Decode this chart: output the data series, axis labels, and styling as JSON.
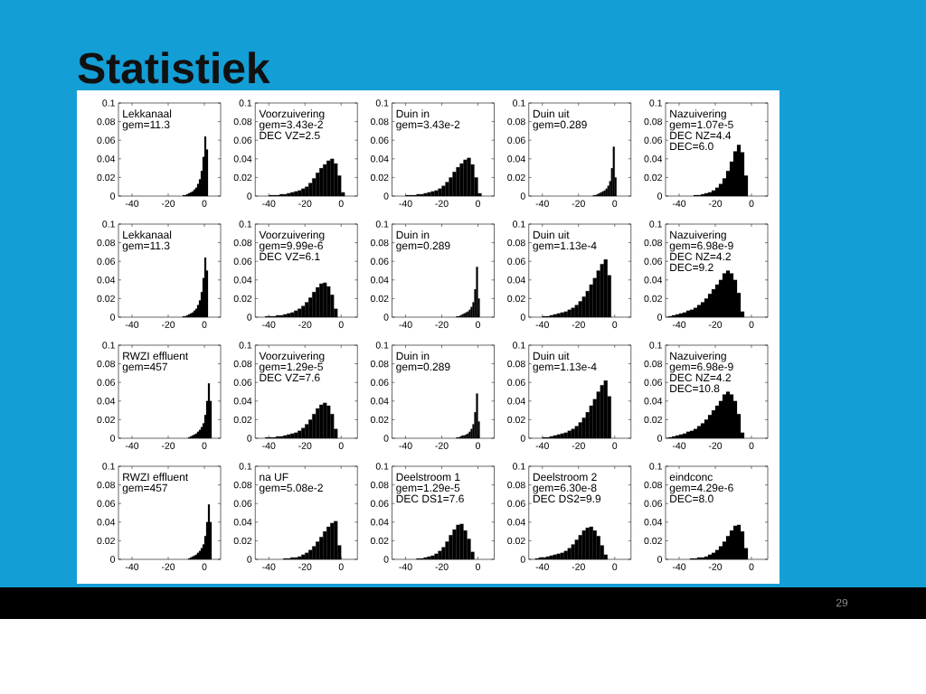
{
  "chart_data": [
    {
      "type": "other",
      "title": "Statistiek",
      "annotations": [
        "29"
      ]
    },
    {
      "type": "histogram",
      "title": "Lekkanaal",
      "annotations": [
        "gem=11.3"
      ],
      "bins": [
        -12,
        -11,
        -10,
        -9,
        -8,
        -7,
        -6,
        -5,
        -4,
        -3,
        -2,
        -1,
        0,
        1,
        2
      ],
      "values": [
        0.001,
        0.001,
        0.002,
        0.003,
        0.004,
        0.005,
        0.007,
        0.009,
        0.013,
        0.018,
        0.027,
        0.042,
        0.064,
        0.05
      ],
      "color": "#000000",
      "xlim": [
        -47.5,
        9
      ],
      "ylim": [
        0,
        0.1
      ],
      "xticks": [
        -40,
        -20,
        0
      ],
      "yticks": [
        0,
        0.02,
        0.04,
        0.06,
        0.08,
        0.1
      ]
    },
    {
      "type": "histogram",
      "title": "Voorzuivering",
      "annotations": [
        "gem=3.43e-2",
        "DEC VZ=2.5"
      ],
      "bins": [
        -40,
        -38,
        -36,
        -34,
        -32,
        -30,
        -28,
        -26,
        -24,
        -22,
        -20,
        -18,
        -16,
        -14,
        -12,
        -10,
        -8,
        -6,
        -4,
        -2,
        0,
        2
      ],
      "values": [
        0.001,
        0.001,
        0.001,
        0.002,
        0.002,
        0.003,
        0.004,
        0.005,
        0.006,
        0.008,
        0.01,
        0.014,
        0.019,
        0.025,
        0.03,
        0.034,
        0.038,
        0.04,
        0.035,
        0.022,
        0.004
      ],
      "color": "#000000",
      "xlim": [
        -47.5,
        9
      ],
      "ylim": [
        0,
        0.1
      ],
      "xticks": [
        -40,
        -20,
        0
      ],
      "yticks": [
        0,
        0.02,
        0.04,
        0.06,
        0.08,
        0.1
      ]
    },
    {
      "type": "histogram",
      "title": "Duin in",
      "annotations": [
        "gem=3.43e-2"
      ],
      "bins": [
        -40,
        -38,
        -36,
        -34,
        -32,
        -30,
        -28,
        -26,
        -24,
        -22,
        -20,
        -18,
        -16,
        -14,
        -12,
        -10,
        -8,
        -6,
        -4,
        -2,
        0,
        2
      ],
      "values": [
        0.001,
        0.001,
        0.001,
        0.002,
        0.002,
        0.003,
        0.004,
        0.005,
        0.006,
        0.008,
        0.011,
        0.015,
        0.02,
        0.026,
        0.031,
        0.035,
        0.039,
        0.041,
        0.034,
        0.02,
        0.003
      ],
      "color": "#000000",
      "xlim": [
        -47.5,
        9
      ],
      "ylim": [
        0,
        0.1
      ],
      "xticks": [
        -40,
        -20,
        0
      ],
      "yticks": [
        0,
        0.02,
        0.04,
        0.06,
        0.08,
        0.1
      ]
    },
    {
      "type": "histogram",
      "title": "Duin uit",
      "annotations": [
        "gem=0.289"
      ],
      "bins": [
        -12,
        -11,
        -10,
        -9,
        -8,
        -7,
        -6,
        -5,
        -4,
        -3,
        -2,
        -1,
        0,
        1
      ],
      "values": [
        0.001,
        0.001,
        0.002,
        0.003,
        0.004,
        0.005,
        0.006,
        0.008,
        0.011,
        0.016,
        0.03,
        0.053,
        0.02
      ],
      "color": "#000000",
      "xlim": [
        -47.5,
        9
      ],
      "ylim": [
        0,
        0.1
      ],
      "xticks": [
        -40,
        -20,
        0
      ],
      "yticks": [
        0,
        0.02,
        0.04,
        0.06,
        0.08,
        0.1
      ]
    },
    {
      "type": "histogram",
      "title": "Nazuivering",
      "annotations": [
        "gem=1.07e-5",
        "DEC NZ=4.4",
        "DEC=6.0"
      ],
      "bins": [
        -32,
        -30,
        -28,
        -26,
        -24,
        -22,
        -20,
        -18,
        -16,
        -14,
        -12,
        -10,
        -8,
        -6,
        -4,
        -2
      ],
      "values": [
        0.001,
        0.001,
        0.002,
        0.003,
        0.004,
        0.006,
        0.009,
        0.013,
        0.019,
        0.027,
        0.037,
        0.048,
        0.055,
        0.047,
        0.022
      ],
      "color": "#000000",
      "xlim": [
        -47.5,
        9
      ],
      "ylim": [
        0,
        0.1
      ],
      "xticks": [
        -40,
        -20,
        0
      ],
      "yticks": [
        0,
        0.02,
        0.04,
        0.06,
        0.08,
        0.1
      ]
    },
    {
      "type": "histogram",
      "title": "Lekkanaal",
      "annotations": [
        "gem=11.3"
      ],
      "bins": [
        -12,
        -11,
        -10,
        -9,
        -8,
        -7,
        -6,
        -5,
        -4,
        -3,
        -2,
        -1,
        0,
        1,
        2
      ],
      "values": [
        0.001,
        0.001,
        0.002,
        0.003,
        0.004,
        0.005,
        0.007,
        0.009,
        0.013,
        0.018,
        0.027,
        0.042,
        0.064,
        0.05
      ],
      "color": "#000000",
      "xlim": [
        -47.5,
        9
      ],
      "ylim": [
        0,
        0.1
      ],
      "xticks": [
        -40,
        -20,
        0
      ],
      "yticks": [
        0,
        0.02,
        0.04,
        0.06,
        0.08,
        0.1
      ]
    },
    {
      "type": "histogram",
      "title": "Voorzuivering",
      "annotations": [
        "gem=9.99e-6",
        "DEC VZ=6.1"
      ],
      "bins": [
        -42,
        -40,
        -38,
        -36,
        -34,
        -32,
        -30,
        -28,
        -26,
        -24,
        -22,
        -20,
        -18,
        -16,
        -14,
        -12,
        -10,
        -8,
        -6,
        -4,
        -2
      ],
      "values": [
        0.001,
        0.001,
        0.001,
        0.002,
        0.002,
        0.003,
        0.004,
        0.005,
        0.007,
        0.009,
        0.012,
        0.016,
        0.021,
        0.027,
        0.032,
        0.036,
        0.037,
        0.033,
        0.024,
        0.009
      ],
      "color": "#000000",
      "xlim": [
        -47.5,
        9
      ],
      "ylim": [
        0,
        0.1
      ],
      "xticks": [
        -40,
        -20,
        0
      ],
      "yticks": [
        0,
        0.02,
        0.04,
        0.06,
        0.08,
        0.1
      ]
    },
    {
      "type": "histogram",
      "title": "Duin in",
      "annotations": [
        "gem=0.289"
      ],
      "bins": [
        -12,
        -11,
        -10,
        -9,
        -8,
        -7,
        -6,
        -5,
        -4,
        -3,
        -2,
        -1,
        0,
        1
      ],
      "values": [
        0.001,
        0.001,
        0.002,
        0.003,
        0.004,
        0.005,
        0.006,
        0.008,
        0.011,
        0.016,
        0.03,
        0.054,
        0.02
      ],
      "color": "#000000",
      "xlim": [
        -47.5,
        9
      ],
      "ylim": [
        0,
        0.1
      ],
      "xticks": [
        -40,
        -20,
        0
      ],
      "yticks": [
        0,
        0.02,
        0.04,
        0.06,
        0.08,
        0.1
      ]
    },
    {
      "type": "histogram",
      "title": "Duin uit",
      "annotations": [
        "gem=1.13e-4"
      ],
      "bins": [
        -40,
        -38,
        -36,
        -34,
        -32,
        -30,
        -28,
        -26,
        -24,
        -22,
        -20,
        -18,
        -16,
        -14,
        -12,
        -10,
        -8,
        -6,
        -4,
        -2
      ],
      "values": [
        0.001,
        0.001,
        0.002,
        0.003,
        0.004,
        0.005,
        0.006,
        0.008,
        0.01,
        0.013,
        0.017,
        0.022,
        0.028,
        0.035,
        0.042,
        0.05,
        0.057,
        0.062,
        0.045
      ],
      "color": "#000000",
      "xlim": [
        -47.5,
        9
      ],
      "ylim": [
        0,
        0.1
      ],
      "xticks": [
        -40,
        -20,
        0
      ],
      "yticks": [
        0,
        0.02,
        0.04,
        0.06,
        0.08,
        0.1
      ]
    },
    {
      "type": "histogram",
      "title": "Nazuivering",
      "annotations": [
        "gem=6.98e-9",
        "DEC NZ=4.2",
        "DEC=9.2"
      ],
      "bins": [
        -46,
        -44,
        -42,
        -40,
        -38,
        -36,
        -34,
        -32,
        -30,
        -28,
        -26,
        -24,
        -22,
        -20,
        -18,
        -16,
        -14,
        -12,
        -10,
        -8,
        -6,
        -4
      ],
      "values": [
        0.001,
        0.002,
        0.003,
        0.004,
        0.005,
        0.007,
        0.008,
        0.01,
        0.013,
        0.016,
        0.02,
        0.025,
        0.03,
        0.035,
        0.04,
        0.047,
        0.05,
        0.047,
        0.04,
        0.026,
        0.006
      ],
      "color": "#000000",
      "xlim": [
        -47.5,
        9
      ],
      "ylim": [
        0,
        0.1
      ],
      "xticks": [
        -40,
        -20,
        0
      ],
      "yticks": [
        0,
        0.02,
        0.04,
        0.06,
        0.08,
        0.1
      ]
    },
    {
      "type": "histogram",
      "title": "RWZI effluent",
      "annotations": [
        "gem=457"
      ],
      "bins": [
        -9,
        -8,
        -7,
        -6,
        -5,
        -4,
        -3,
        -2,
        -1,
        0,
        1,
        2,
        3,
        4
      ],
      "values": [
        0.001,
        0.002,
        0.003,
        0.004,
        0.005,
        0.007,
        0.009,
        0.012,
        0.016,
        0.025,
        0.04,
        0.059,
        0.04
      ],
      "color": "#000000",
      "xlim": [
        -47.5,
        9
      ],
      "ylim": [
        0,
        0.1
      ],
      "xticks": [
        -40,
        -20,
        0
      ],
      "yticks": [
        0,
        0.02,
        0.04,
        0.06,
        0.08,
        0.1
      ]
    },
    {
      "type": "histogram",
      "title": "Voorzuivering",
      "annotations": [
        "gem=1.29e-5",
        "DEC VZ=7.6"
      ],
      "bins": [
        -42,
        -40,
        -38,
        -36,
        -34,
        -32,
        -30,
        -28,
        -26,
        -24,
        -22,
        -20,
        -18,
        -16,
        -14,
        -12,
        -10,
        -8,
        -6,
        -4,
        -2
      ],
      "values": [
        0.001,
        0.001,
        0.001,
        0.002,
        0.002,
        0.003,
        0.004,
        0.005,
        0.006,
        0.008,
        0.011,
        0.015,
        0.02,
        0.026,
        0.032,
        0.036,
        0.038,
        0.035,
        0.026,
        0.01
      ],
      "color": "#000000",
      "xlim": [
        -47.5,
        9
      ],
      "ylim": [
        0,
        0.1
      ],
      "xticks": [
        -40,
        -20,
        0
      ],
      "yticks": [
        0,
        0.02,
        0.04,
        0.06,
        0.08,
        0.1
      ]
    },
    {
      "type": "histogram",
      "title": "Duin in",
      "annotations": [
        "gem=0.289"
      ],
      "bins": [
        -12,
        -11,
        -10,
        -9,
        -8,
        -7,
        -6,
        -5,
        -4,
        -3,
        -2,
        -1,
        0,
        1
      ],
      "values": [
        0.001,
        0.001,
        0.002,
        0.003,
        0.003,
        0.004,
        0.005,
        0.007,
        0.01,
        0.015,
        0.028,
        0.048,
        0.018
      ],
      "color": "#000000",
      "xlim": [
        -47.5,
        9
      ],
      "ylim": [
        0,
        0.1
      ],
      "xticks": [
        -40,
        -20,
        0
      ],
      "yticks": [
        0,
        0.02,
        0.04,
        0.06,
        0.08,
        0.1
      ]
    },
    {
      "type": "histogram",
      "title": "Duin uit",
      "annotations": [
        "gem=1.13e-4"
      ],
      "bins": [
        -40,
        -38,
        -36,
        -34,
        -32,
        -30,
        -28,
        -26,
        -24,
        -22,
        -20,
        -18,
        -16,
        -14,
        -12,
        -10,
        -8,
        -6,
        -4,
        -2
      ],
      "values": [
        0.001,
        0.001,
        0.002,
        0.003,
        0.004,
        0.005,
        0.006,
        0.008,
        0.01,
        0.013,
        0.017,
        0.022,
        0.028,
        0.035,
        0.042,
        0.05,
        0.057,
        0.062,
        0.045
      ],
      "color": "#000000",
      "xlim": [
        -47.5,
        9
      ],
      "ylim": [
        0,
        0.1
      ],
      "xticks": [
        -40,
        -20,
        0
      ],
      "yticks": [
        0,
        0.02,
        0.04,
        0.06,
        0.08,
        0.1
      ]
    },
    {
      "type": "histogram",
      "title": "Nazuivering",
      "annotations": [
        "gem=6.98e-9",
        "DEC NZ=4.2",
        "DEC=10.8"
      ],
      "bins": [
        -46,
        -44,
        -42,
        -40,
        -38,
        -36,
        -34,
        -32,
        -30,
        -28,
        -26,
        -24,
        -22,
        -20,
        -18,
        -16,
        -14,
        -12,
        -10,
        -8,
        -6,
        -4
      ],
      "values": [
        0.001,
        0.002,
        0.003,
        0.004,
        0.005,
        0.007,
        0.008,
        0.01,
        0.013,
        0.016,
        0.02,
        0.025,
        0.03,
        0.035,
        0.04,
        0.047,
        0.05,
        0.047,
        0.04,
        0.026,
        0.006
      ],
      "color": "#000000",
      "xlim": [
        -47.5,
        9
      ],
      "ylim": [
        0,
        0.1
      ],
      "xticks": [
        -40,
        -20,
        0
      ],
      "yticks": [
        0,
        0.02,
        0.04,
        0.06,
        0.08,
        0.1
      ]
    },
    {
      "type": "histogram",
      "title": "RWZI effluent",
      "annotations": [
        "gem=457"
      ],
      "bins": [
        -9,
        -8,
        -7,
        -6,
        -5,
        -4,
        -3,
        -2,
        -1,
        0,
        1,
        2,
        3,
        4
      ],
      "values": [
        0.001,
        0.002,
        0.003,
        0.004,
        0.005,
        0.007,
        0.009,
        0.012,
        0.016,
        0.025,
        0.04,
        0.059,
        0.04
      ],
      "color": "#000000",
      "xlim": [
        -47.5,
        9
      ],
      "ylim": [
        0,
        0.1
      ],
      "xticks": [
        -40,
        -20,
        0
      ],
      "yticks": [
        0,
        0.02,
        0.04,
        0.06,
        0.08,
        0.1
      ]
    },
    {
      "type": "histogram",
      "title": "na UF",
      "annotations": [
        "gem=5.08e-2"
      ],
      "bins": [
        -32,
        -30,
        -28,
        -26,
        -24,
        -22,
        -20,
        -18,
        -16,
        -14,
        -12,
        -10,
        -8,
        -6,
        -4,
        -2,
        0
      ],
      "values": [
        0.001,
        0.001,
        0.002,
        0.002,
        0.003,
        0.005,
        0.007,
        0.01,
        0.014,
        0.019,
        0.024,
        0.03,
        0.035,
        0.039,
        0.041,
        0.015
      ],
      "color": "#000000",
      "xlim": [
        -47.5,
        9
      ],
      "ylim": [
        0,
        0.1
      ],
      "xticks": [
        -40,
        -20,
        0
      ],
      "yticks": [
        0,
        0.02,
        0.04,
        0.06,
        0.08,
        0.1
      ]
    },
    {
      "type": "histogram",
      "title": "Deelstroom 1",
      "annotations": [
        "gem=1.29e-5",
        "DEC DS1=7.6"
      ],
      "bins": [
        -34,
        -32,
        -30,
        -28,
        -26,
        -24,
        -22,
        -20,
        -18,
        -16,
        -14,
        -12,
        -10,
        -8,
        -6,
        -4,
        -2
      ],
      "values": [
        0.001,
        0.001,
        0.002,
        0.003,
        0.004,
        0.006,
        0.009,
        0.013,
        0.019,
        0.026,
        0.032,
        0.037,
        0.038,
        0.031,
        0.022,
        0.008
      ],
      "color": "#000000",
      "xlim": [
        -47.5,
        9
      ],
      "ylim": [
        0,
        0.1
      ],
      "xticks": [
        -40,
        -20,
        0
      ],
      "yticks": [
        0,
        0.02,
        0.04,
        0.06,
        0.08,
        0.1
      ]
    },
    {
      "type": "histogram",
      "title": "Deelstroom 2",
      "annotations": [
        "gem=6.30e-8",
        "DEC DS2=9.9"
      ],
      "bins": [
        -44,
        -42,
        -40,
        -38,
        -36,
        -34,
        -32,
        -30,
        -28,
        -26,
        -24,
        -22,
        -20,
        -18,
        -16,
        -14,
        -12,
        -10,
        -8,
        -6,
        -4
      ],
      "values": [
        0.001,
        0.002,
        0.002,
        0.003,
        0.004,
        0.005,
        0.006,
        0.007,
        0.009,
        0.012,
        0.016,
        0.021,
        0.026,
        0.031,
        0.034,
        0.035,
        0.031,
        0.025,
        0.015,
        0.005
      ],
      "color": "#000000",
      "xlim": [
        -47.5,
        9
      ],
      "ylim": [
        0,
        0.1
      ],
      "xticks": [
        -40,
        -20,
        0
      ],
      "yticks": [
        0,
        0.02,
        0.04,
        0.06,
        0.08,
        0.1
      ]
    },
    {
      "type": "histogram",
      "title": "eindconc",
      "annotations": [
        "gem=4.29e-6",
        "DEC=8.0"
      ],
      "bins": [
        -34,
        -32,
        -30,
        -28,
        -26,
        -24,
        -22,
        -20,
        -18,
        -16,
        -14,
        -12,
        -10,
        -8,
        -6,
        -4,
        -2
      ],
      "values": [
        0.001,
        0.001,
        0.002,
        0.002,
        0.003,
        0.005,
        0.007,
        0.01,
        0.014,
        0.019,
        0.025,
        0.031,
        0.036,
        0.037,
        0.03,
        0.012
      ],
      "color": "#000000",
      "xlim": [
        -47.5,
        9
      ],
      "ylim": [
        0,
        0.1
      ],
      "xticks": [
        -40,
        -20,
        0
      ],
      "yticks": [
        0,
        0.02,
        0.04,
        0.06,
        0.08,
        0.1
      ]
    }
  ]
}
